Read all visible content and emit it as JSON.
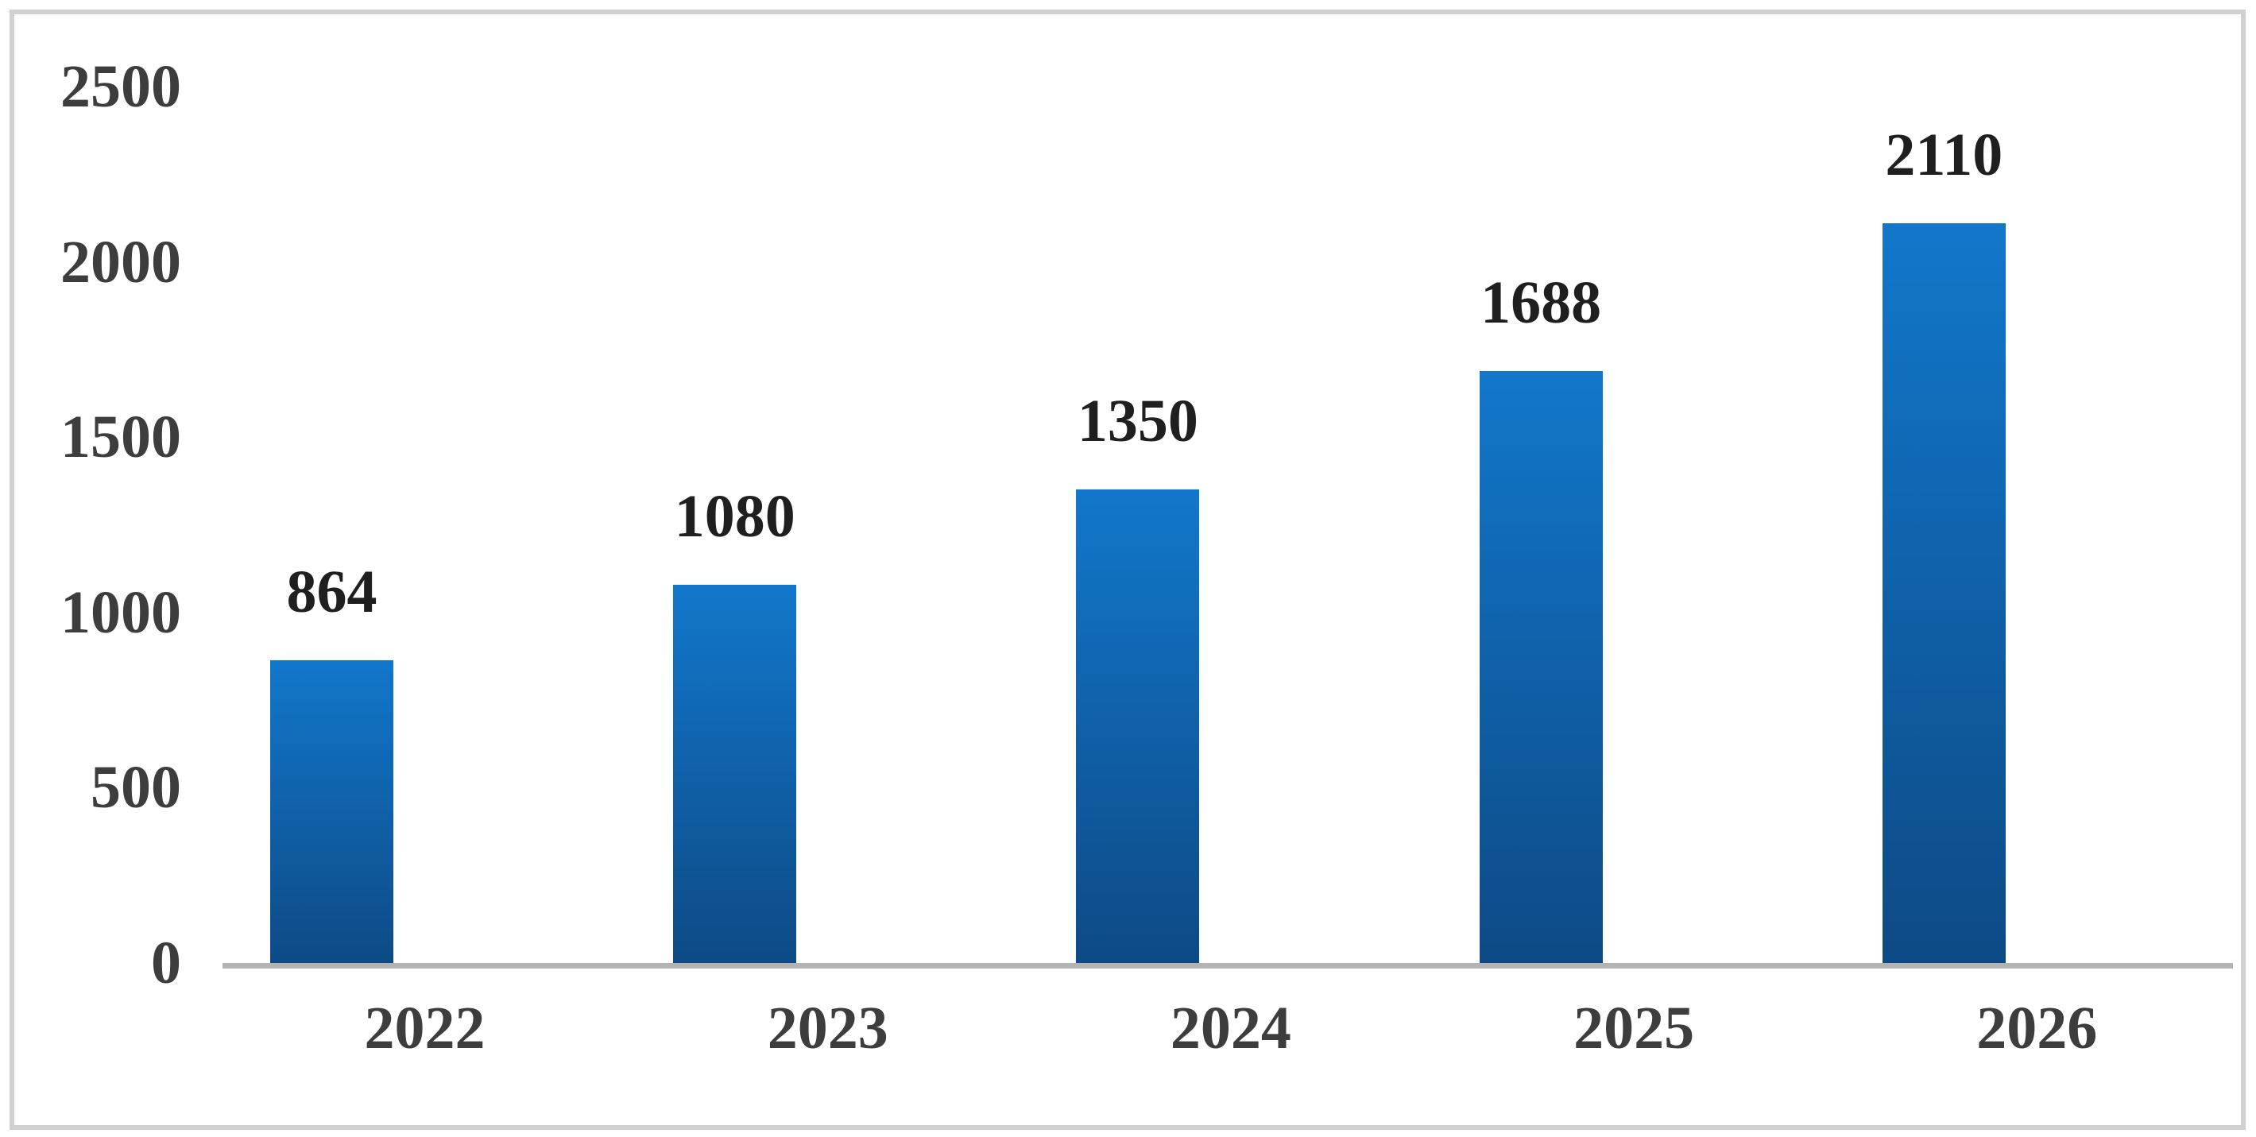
{
  "chart_data": {
    "type": "bar",
    "title": "",
    "xlabel": "",
    "ylabel": "",
    "categories": [
      "2022",
      "2023",
      "2024",
      "2025",
      "2026"
    ],
    "values": [
      864,
      1080,
      1350,
      1688,
      2110
    ],
    "data_labels": [
      "864",
      "1080",
      "1350",
      "1688",
      "2110"
    ],
    "ylim": [
      0,
      2500
    ],
    "yticks": [
      "0",
      "500",
      "1000",
      "1500",
      "2000",
      "2500"
    ],
    "grid": false,
    "legend_position": "none",
    "colors": {
      "bar_gradient_top": "#1277cb",
      "bar_gradient_bottom": "#0d4a85",
      "axis_line": "#b3b3b3",
      "frame_border": "#d0d0d0",
      "tick_label": "#3d3d3d",
      "value_label": "#1f1f1f",
      "background": "#ffffff"
    }
  }
}
